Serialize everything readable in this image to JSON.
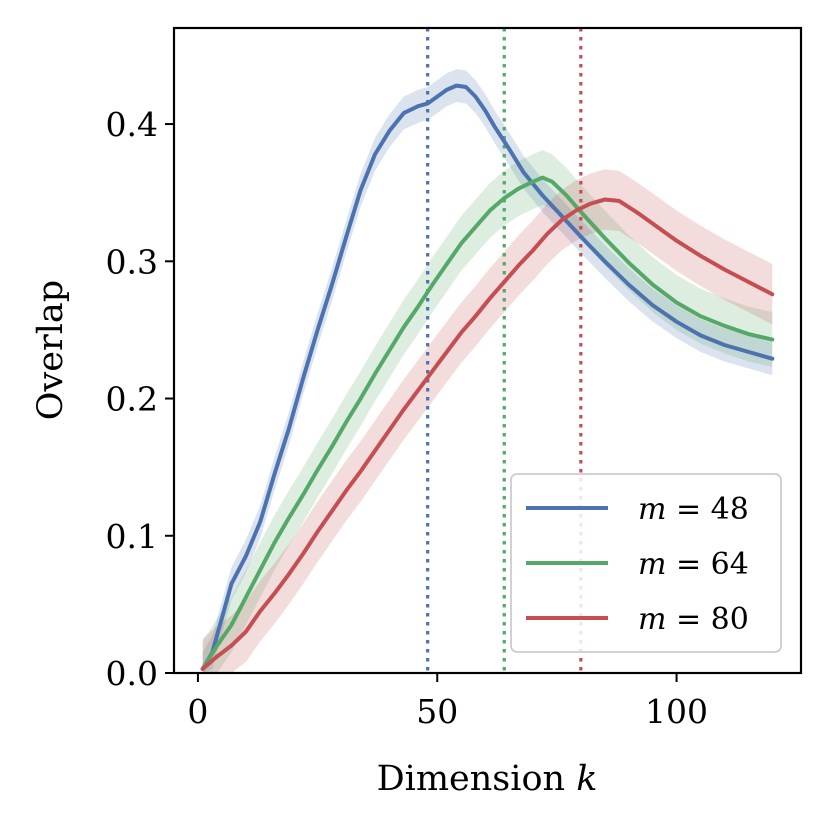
{
  "chart_data": {
    "type": "line",
    "xlabel": "Dimension ",
    "xlabel_var": "k",
    "ylabel": "Overlap",
    "xlim": [
      -5,
      126
    ],
    "ylim": [
      0,
      0.47
    ],
    "xticks": [
      0,
      50,
      100
    ],
    "xtick_labels": [
      "0",
      "50",
      "100"
    ],
    "yticks": [
      0.0,
      0.1,
      0.2,
      0.3,
      0.4
    ],
    "ytick_labels": [
      "0.0",
      "0.1",
      "0.2",
      "0.3",
      "0.4"
    ],
    "legend_position": "lower-right",
    "series": [
      {
        "name": "m = 48",
        "legend_var": "m",
        "legend_text": " = 48",
        "color": "#4c72b0",
        "vline": 48,
        "x": [
          1,
          3,
          5,
          7,
          10,
          13,
          16,
          19,
          22,
          25,
          28,
          31,
          34,
          37,
          40,
          43,
          46,
          48,
          50,
          52,
          54,
          56,
          58,
          60,
          62,
          65,
          68,
          72,
          76,
          80,
          85,
          90,
          95,
          100,
          105,
          110,
          115,
          120
        ],
        "y": [
          0.003,
          0.015,
          0.04,
          0.065,
          0.085,
          0.11,
          0.145,
          0.178,
          0.215,
          0.25,
          0.283,
          0.318,
          0.352,
          0.378,
          0.395,
          0.408,
          0.413,
          0.415,
          0.42,
          0.425,
          0.428,
          0.427,
          0.42,
          0.41,
          0.398,
          0.382,
          0.365,
          0.348,
          0.333,
          0.318,
          0.3,
          0.283,
          0.268,
          0.256,
          0.246,
          0.239,
          0.234,
          0.229
        ],
        "band": 0.012
      },
      {
        "name": "m = 64",
        "legend_var": "m",
        "legend_text": " = 64",
        "color": "#55a868",
        "vline": 64,
        "x": [
          1,
          4,
          7,
          10,
          13,
          16,
          19,
          22,
          25,
          28,
          31,
          34,
          37,
          40,
          43,
          46,
          49,
          52,
          55,
          58,
          61,
          64,
          67,
          70,
          72,
          74,
          77,
          80,
          85,
          90,
          95,
          100,
          105,
          110,
          115,
          120
        ],
        "y": [
          0.003,
          0.02,
          0.035,
          0.055,
          0.075,
          0.095,
          0.113,
          0.13,
          0.148,
          0.165,
          0.183,
          0.2,
          0.218,
          0.235,
          0.252,
          0.267,
          0.283,
          0.298,
          0.313,
          0.325,
          0.337,
          0.346,
          0.353,
          0.358,
          0.361,
          0.358,
          0.348,
          0.336,
          0.317,
          0.299,
          0.283,
          0.27,
          0.26,
          0.253,
          0.247,
          0.243
        ],
        "band": 0.02
      },
      {
        "name": "m = 80",
        "legend_var": "m",
        "legend_text": " = 80",
        "color": "#c44e52",
        "vline": 80,
        "x": [
          1,
          4,
          7,
          10,
          13,
          16,
          19,
          22,
          25,
          28,
          31,
          34,
          37,
          40,
          43,
          46,
          49,
          52,
          55,
          58,
          61,
          64,
          67,
          70,
          73,
          76,
          79,
          82,
          85,
          88,
          92,
          96,
          100,
          105,
          110,
          115,
          120
        ],
        "y": [
          0.003,
          0.012,
          0.02,
          0.03,
          0.045,
          0.058,
          0.072,
          0.087,
          0.103,
          0.118,
          0.133,
          0.147,
          0.162,
          0.177,
          0.192,
          0.206,
          0.22,
          0.234,
          0.248,
          0.26,
          0.273,
          0.285,
          0.297,
          0.308,
          0.32,
          0.33,
          0.337,
          0.342,
          0.345,
          0.344,
          0.335,
          0.325,
          0.315,
          0.304,
          0.294,
          0.285,
          0.276
        ],
        "band": 0.022
      }
    ]
  }
}
